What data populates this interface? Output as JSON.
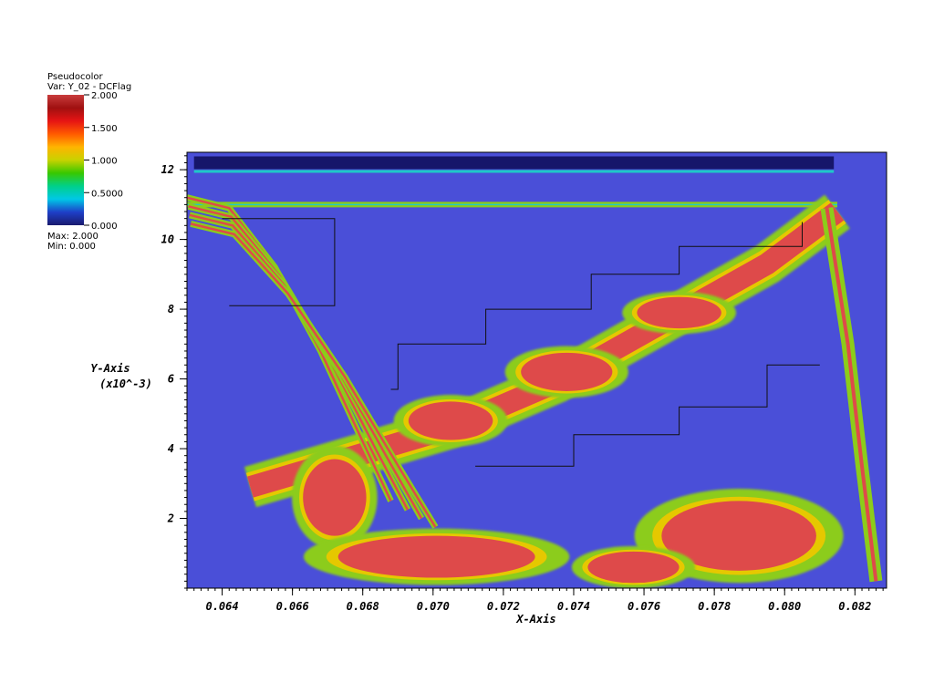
{
  "legend": {
    "plot_type": "Pseudocolor",
    "variable": "Var: Y_02 - DCFlag",
    "max_text": "Max: 2.000",
    "min_text": "Min: 0.000",
    "ticks": [
      {
        "value": 2.0,
        "label": "2.000"
      },
      {
        "value": 1.5,
        "label": "1.500"
      },
      {
        "value": 1.0,
        "label": "1.000"
      },
      {
        "value": 0.5,
        "label": "0.5000"
      },
      {
        "value": 0.0,
        "label": "0.000"
      }
    ],
    "range": [
      0,
      2
    ],
    "colors": [
      "#1a1a6e",
      "#1e3fc8",
      "#00c8e6",
      "#00d08a",
      "#38c800",
      "#c8d200",
      "#ffb400",
      "#ff5a00",
      "#e61414",
      "#a01010",
      "#c83c3c"
    ]
  },
  "chart_data": {
    "type": "heatmap",
    "title": "",
    "xlabel": "X-Axis",
    "ylabel": "Y-Axis",
    "ylabel_scale": "(x10^-3)",
    "xlim": [
      0.063,
      0.0829
    ],
    "ylim": [
      0.0,
      12.5
    ],
    "xticks": [
      {
        "value": 0.064,
        "label": "0.064"
      },
      {
        "value": 0.066,
        "label": "0.066"
      },
      {
        "value": 0.068,
        "label": "0.068"
      },
      {
        "value": 0.07,
        "label": "0.070"
      },
      {
        "value": 0.072,
        "label": "0.072"
      },
      {
        "value": 0.074,
        "label": "0.074"
      },
      {
        "value": 0.076,
        "label": "0.076"
      },
      {
        "value": 0.078,
        "label": "0.078"
      },
      {
        "value": 0.08,
        "label": "0.080"
      },
      {
        "value": 0.082,
        "label": "0.082"
      }
    ],
    "yticks": [
      {
        "value": 2,
        "label": "2"
      },
      {
        "value": 4,
        "label": "4"
      },
      {
        "value": 6,
        "label": "6"
      },
      {
        "value": 8,
        "label": "8"
      },
      {
        "value": 10,
        "label": "10"
      },
      {
        "value": 12,
        "label": "12"
      }
    ],
    "background_value": 0.3,
    "background_color": "#4a4fd8",
    "red_color": "#de4a4a",
    "green_color": "#8ccc1a",
    "cyan_color": "#1ec8c8",
    "features": {
      "diagonal_shock": [
        [
          0.0648,
          2.9
        ],
        [
          0.0675,
          3.7
        ],
        [
          0.0705,
          4.6
        ],
        [
          0.0735,
          5.9
        ],
        [
          0.0765,
          7.6
        ],
        [
          0.0795,
          9.3
        ],
        [
          0.0815,
          10.8
        ]
      ],
      "lower_shock_lines": [
        [
          0.063,
          11.2
        ],
        [
          0.0642,
          10.9
        ],
        [
          0.0655,
          9.2
        ],
        [
          0.0668,
          6.8
        ],
        [
          0.068,
          4.2
        ],
        [
          0.0688,
          2.5
        ]
      ],
      "vertical_shock": [
        [
          0.0812,
          10.9
        ],
        [
          0.0818,
          7.0
        ],
        [
          0.0822,
          3.5
        ],
        [
          0.0826,
          0.2
        ]
      ],
      "upper_hline": [
        [
          0.063,
          11.0
        ],
        [
          0.0815,
          11.0
        ]
      ],
      "top_channel": [
        [
          0.0632,
          12.2
        ],
        [
          0.0814,
          12.2
        ]
      ],
      "blobs": [
        {
          "x": 0.0672,
          "y": 2.6,
          "rx": 0.0009,
          "ry": 1.1,
          "value": 1.9
        },
        {
          "x": 0.0705,
          "y": 4.8,
          "rx": 0.0012,
          "ry": 0.55,
          "value": 1.9
        },
        {
          "x": 0.0738,
          "y": 6.2,
          "rx": 0.0013,
          "ry": 0.55,
          "value": 1.85
        },
        {
          "x": 0.077,
          "y": 7.9,
          "rx": 0.0012,
          "ry": 0.45,
          "value": 1.85
        },
        {
          "x": 0.0701,
          "y": 0.9,
          "rx": 0.0028,
          "ry": 0.6,
          "value": 1.8
        },
        {
          "x": 0.0787,
          "y": 1.5,
          "rx": 0.0022,
          "ry": 1.0,
          "value": 1.85
        },
        {
          "x": 0.0757,
          "y": 0.6,
          "rx": 0.0013,
          "ry": 0.45,
          "value": 1.8
        }
      ]
    }
  }
}
